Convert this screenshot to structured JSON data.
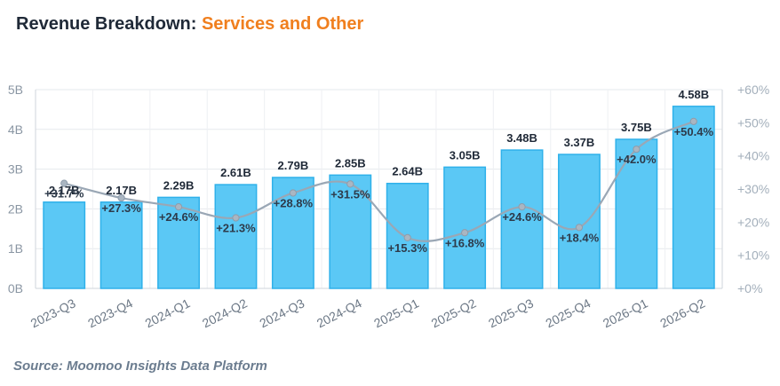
{
  "title": {
    "main": "Revenue Breakdown: ",
    "accent": "Services and Other"
  },
  "source": "Source: Moomoo Insights Data Platform",
  "colors": {
    "bar_fill": "#5bc8f5",
    "bar_stroke": "#2fb1ea",
    "line": "#9aa7b5",
    "accent": "#f07f1e"
  },
  "chart_data": {
    "type": "bar",
    "categories": [
      "2023-Q3",
      "2023-Q4",
      "2024-Q1",
      "2024-Q2",
      "2024-Q3",
      "2024-Q4",
      "2025-Q1",
      "2025-Q2",
      "2025-Q3",
      "2025-Q4",
      "2026-Q1",
      "2026-Q2"
    ],
    "series": [
      {
        "values": [
          2.17,
          2.17,
          2.29,
          2.61,
          2.79,
          2.85,
          2.64,
          3.05,
          3.48,
          3.37,
          3.75,
          4.58
        ],
        "labels": [
          "2.17B",
          "2.17B",
          "2.29B",
          "2.61B",
          "2.79B",
          "2.85B",
          "2.64B",
          "3.05B",
          "3.48B",
          "3.37B",
          "3.75B",
          "4.58B"
        ],
        "axis": "left",
        "kind": "bar"
      },
      {
        "values": [
          31.7,
          27.3,
          24.6,
          21.3,
          28.8,
          31.5,
          15.3,
          16.8,
          24.6,
          18.4,
          42.0,
          50.4
        ],
        "labels": [
          "+31.7%",
          "+27.3%",
          "+24.6%",
          "+21.3%",
          "+28.8%",
          "+31.5%",
          "+15.3%",
          "+16.8%",
          "+24.6%",
          "+18.4%",
          "+42.0%",
          "+50.4%"
        ],
        "axis": "right",
        "kind": "line"
      }
    ],
    "y_left": {
      "min": 0,
      "max": 5,
      "ticks": [
        "0B",
        "1B",
        "2B",
        "3B",
        "4B",
        "5B"
      ]
    },
    "y_right": {
      "min": 0,
      "max": 60,
      "ticks": [
        "+0%",
        "+10%",
        "+20%",
        "+30%",
        "+40%",
        "+50%",
        "+60%"
      ]
    },
    "grid": true,
    "legend": "none"
  }
}
